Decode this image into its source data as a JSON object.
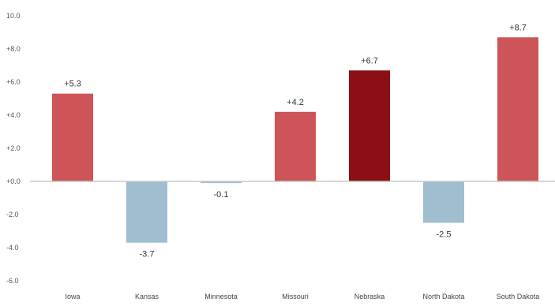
{
  "chart_data": {
    "type": "bar",
    "title": "",
    "xlabel": "",
    "ylabel": "",
    "categories": [
      "Iowa",
      "Kansas",
      "Minnesota",
      "Missouri",
      "Nebraska",
      "North Dakota",
      "South Dakota"
    ],
    "values": [
      5.3,
      -3.7,
      -0.1,
      4.2,
      6.7,
      -2.5,
      8.7
    ],
    "data_labels": [
      "+5.3",
      "-3.7",
      "-0.1",
      "+4.2",
      "+6.7",
      "-2.5",
      "+8.7"
    ],
    "ylim": [
      -6.0,
      10.0
    ],
    "yticks": [
      10.0,
      8.0,
      6.0,
      4.0,
      2.0,
      0.0,
      -2.0,
      -4.0,
      -6.0
    ],
    "ytick_labels": [
      "10.0",
      "+8.0",
      "+6.0",
      "+4.0",
      "+2.0",
      "+0.0",
      "-2.0",
      "-4.0",
      "-6.0"
    ],
    "grid": false,
    "legend": "none",
    "colors": {
      "positive": "#cd5458",
      "highlight": "#8b0f14",
      "negative": "#9fbecf",
      "axis": "#c8c8c8"
    },
    "highlight_category": "Nebraska"
  }
}
